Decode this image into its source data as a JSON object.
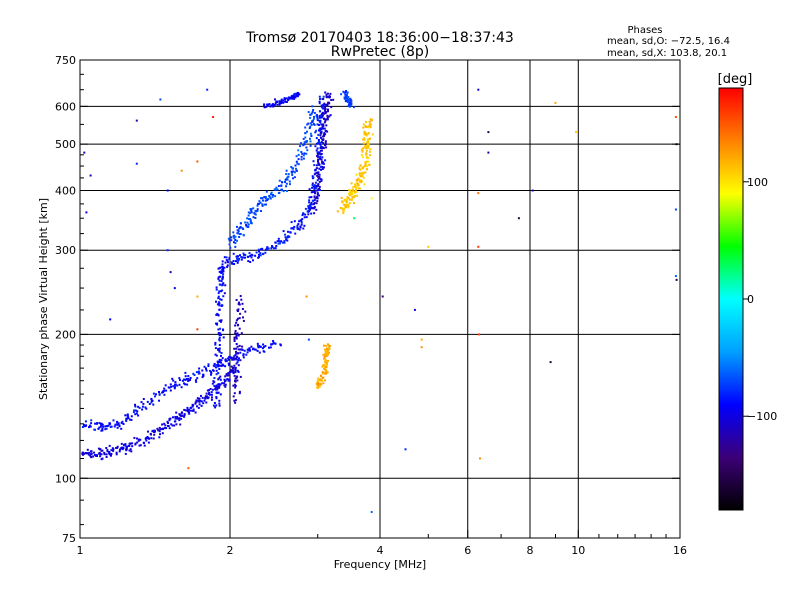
{
  "chart_data": {
    "type": "scatter",
    "title": "Tromsø 20170403 18:36:00−18:37:43",
    "subtitle": "RwPretec (8p)",
    "xlabel": "Frequency [MHz]",
    "ylabel": "Stationary phase Virtual Height [km]",
    "x_scale": "log",
    "y_scale": "log",
    "xlim": [
      1,
      16
    ],
    "ylim": [
      75,
      750
    ],
    "grid": true,
    "x_grid_values": [
      2,
      4,
      6,
      8,
      10
    ],
    "y_grid_values": [
      100,
      200,
      300,
      400,
      500,
      600
    ],
    "x_ticks": [
      {
        "value": 1,
        "label": "1"
      },
      {
        "value": 2,
        "label": "2"
      },
      {
        "value": 4,
        "label": "4"
      },
      {
        "value": 6,
        "label": "6"
      },
      {
        "value": 8,
        "label": "8"
      },
      {
        "value": 10,
        "label": "10"
      },
      {
        "value": 16,
        "label": "16"
      }
    ],
    "y_ticks": [
      {
        "value": 75,
        "label": "75"
      },
      {
        "value": 100,
        "label": "100"
      },
      {
        "value": 200,
        "label": "200"
      },
      {
        "value": 300,
        "label": "300"
      },
      {
        "value": 400,
        "label": "400"
      },
      {
        "value": 500,
        "label": "500"
      },
      {
        "value": 600,
        "label": "600"
      },
      {
        "value": 750,
        "label": "750"
      }
    ],
    "stats": {
      "title": "Phases",
      "line1": "mean, sd,O: −72.5, 16.4",
      "line2": "mean, sd,X: 103.8, 20.1"
    },
    "colorbar": {
      "label": "[deg]",
      "min": -180,
      "max": 180,
      "ticks": [
        {
          "value": 100,
          "label": "100"
        },
        {
          "value": 0,
          "label": "0"
        },
        {
          "value": -100,
          "label": "−100"
        }
      ],
      "colors": [
        "#000000",
        "#3c0078",
        "#0000ff",
        "#00a0ff",
        "#00ffff",
        "#00ff00",
        "#ffff00",
        "#ff8000",
        "#ff0000"
      ]
    },
    "traces": [
      {
        "description": "lower trace",
        "phase": -100,
        "spread": 0.035,
        "points": [
          [
            1.0,
            113
          ],
          [
            1.08,
            112
          ],
          [
            1.16,
            114
          ],
          [
            1.25,
            116
          ],
          [
            1.35,
            120
          ],
          [
            1.45,
            126
          ],
          [
            1.55,
            132
          ],
          [
            1.65,
            138
          ],
          [
            1.75,
            144
          ],
          [
            1.85,
            150
          ],
          [
            1.95,
            160
          ],
          [
            2.05,
            170
          ]
        ]
      },
      {
        "description": "lower trace upper band",
        "phase": -90,
        "spread": 0.04,
        "points": [
          [
            1.0,
            130
          ],
          [
            1.1,
            128
          ],
          [
            1.2,
            130
          ],
          [
            1.3,
            138
          ],
          [
            1.45,
            150
          ],
          [
            1.6,
            160
          ],
          [
            1.75,
            166
          ],
          [
            1.9,
            175
          ],
          [
            2.05,
            180
          ],
          [
            2.25,
            186
          ],
          [
            2.5,
            190
          ]
        ]
      },
      {
        "description": "vertical column near 1.9 MHz",
        "phase": -90,
        "spread": 0.03,
        "points": [
          [
            1.88,
            140
          ],
          [
            1.89,
            170
          ],
          [
            1.9,
            200
          ],
          [
            1.91,
            230
          ],
          [
            1.92,
            260
          ],
          [
            1.93,
            280
          ]
        ]
      },
      {
        "description": "column near 2.05 MHz",
        "phase": -110,
        "spread": 0.03,
        "points": [
          [
            2.05,
            145
          ],
          [
            2.06,
            175
          ],
          [
            2.08,
            205
          ],
          [
            2.1,
            240
          ]
        ]
      },
      {
        "description": "upper trace",
        "phase": -85,
        "spread": 0.035,
        "points": [
          [
            1.95,
            285
          ],
          [
            2.1,
            287
          ],
          [
            2.3,
            295
          ],
          [
            2.5,
            310
          ],
          [
            2.7,
            330
          ],
          [
            2.85,
            355
          ],
          [
            2.95,
            385
          ],
          [
            3.0,
            420
          ],
          [
            3.02,
            470
          ],
          [
            3.04,
            520
          ],
          [
            3.05,
            570
          ],
          [
            3.07,
            620
          ]
        ]
      },
      {
        "description": "upper trace inner band",
        "phase": -70,
        "spread": 0.04,
        "points": [
          [
            2.0,
            310
          ],
          [
            2.1,
            330
          ],
          [
            2.2,
            355
          ],
          [
            2.35,
            380
          ],
          [
            2.5,
            400
          ],
          [
            2.65,
            430
          ],
          [
            2.8,
            480
          ],
          [
            2.9,
            540
          ],
          [
            2.95,
            600
          ]
        ]
      },
      {
        "description": "upper trace dense core",
        "phase": -110,
        "spread": 0.03,
        "points": [
          [
            2.95,
            360
          ],
          [
            3.0,
            420
          ],
          [
            3.05,
            480
          ],
          [
            3.1,
            540
          ],
          [
            3.12,
            600
          ],
          [
            3.15,
            640
          ]
        ]
      },
      {
        "description": "x-mode upper trace",
        "phase": 110,
        "spread": 0.035,
        "points": [
          [
            3.35,
            365
          ],
          [
            3.45,
            380
          ],
          [
            3.55,
            400
          ],
          [
            3.65,
            420
          ],
          [
            3.72,
            450
          ],
          [
            3.75,
            490
          ],
          [
            3.78,
            520
          ],
          [
            3.8,
            560
          ]
        ]
      },
      {
        "description": "x-mode lower patch",
        "phase": 120,
        "spread": 0.025,
        "points": [
          [
            3.0,
            155
          ],
          [
            3.05,
            160
          ],
          [
            3.1,
            170
          ],
          [
            3.12,
            180
          ],
          [
            3.14,
            190
          ]
        ]
      },
      {
        "description": "upper short trace",
        "phase": -90,
        "spread": 0.02,
        "points": [
          [
            2.35,
            600
          ],
          [
            2.5,
            610
          ],
          [
            2.65,
            625
          ],
          [
            2.75,
            640
          ]
        ]
      },
      {
        "description": "isolated cluster near 3.45 MHz",
        "phase": -70,
        "spread": 0.02,
        "points": [
          [
            3.4,
            640
          ],
          [
            3.45,
            620
          ],
          [
            3.5,
            600
          ]
        ]
      }
    ],
    "scatter": [
      {
        "x": 1.02,
        "y": 480,
        "phase": -110
      },
      {
        "x": 1.05,
        "y": 430,
        "phase": -110
      },
      {
        "x": 1.03,
        "y": 360,
        "phase": -100
      },
      {
        "x": 1.15,
        "y": 215,
        "phase": -90
      },
      {
        "x": 1.3,
        "y": 560,
        "phase": -120
      },
      {
        "x": 1.3,
        "y": 455,
        "phase": -80
      },
      {
        "x": 1.45,
        "y": 620,
        "phase": -70
      },
      {
        "x": 1.5,
        "y": 400,
        "phase": -90
      },
      {
        "x": 1.5,
        "y": 300,
        "phase": -80
      },
      {
        "x": 1.52,
        "y": 270,
        "phase": -110
      },
      {
        "x": 1.55,
        "y": 250,
        "phase": -90
      },
      {
        "x": 1.6,
        "y": 440,
        "phase": 130
      },
      {
        "x": 1.65,
        "y": 105,
        "phase": 150
      },
      {
        "x": 1.72,
        "y": 460,
        "phase": 150
      },
      {
        "x": 1.72,
        "y": 205,
        "phase": 160
      },
      {
        "x": 1.72,
        "y": 240,
        "phase": 120
      },
      {
        "x": 1.8,
        "y": 650,
        "phase": -80
      },
      {
        "x": 1.85,
        "y": 570,
        "phase": 170
      },
      {
        "x": 2.85,
        "y": 240,
        "phase": 130
      },
      {
        "x": 2.88,
        "y": 195,
        "phase": -70
      },
      {
        "x": 3.55,
        "y": 350,
        "phase": 30
      },
      {
        "x": 3.85,
        "y": 385,
        "phase": 90
      },
      {
        "x": 3.85,
        "y": 85,
        "phase": -60
      },
      {
        "x": 4.05,
        "y": 240,
        "phase": -140
      },
      {
        "x": 4.5,
        "y": 115,
        "phase": -80
      },
      {
        "x": 4.7,
        "y": 225,
        "phase": -100
      },
      {
        "x": 4.85,
        "y": 195,
        "phase": 120
      },
      {
        "x": 4.85,
        "y": 188,
        "phase": 130
      },
      {
        "x": 5.0,
        "y": 305,
        "phase": 110
      },
      {
        "x": 6.3,
        "y": 650,
        "phase": -100
      },
      {
        "x": 6.3,
        "y": 395,
        "phase": 140
      },
      {
        "x": 6.3,
        "y": 305,
        "phase": 160
      },
      {
        "x": 6.32,
        "y": 200,
        "phase": 160
      },
      {
        "x": 6.35,
        "y": 110,
        "phase": 130
      },
      {
        "x": 6.6,
        "y": 530,
        "phase": -150
      },
      {
        "x": 6.6,
        "y": 480,
        "phase": -120
      },
      {
        "x": 7.6,
        "y": 350,
        "phase": -150
      },
      {
        "x": 8.1,
        "y": 400,
        "phase": -120
      },
      {
        "x": 8.8,
        "y": 175,
        "phase": -150
      },
      {
        "x": 9.0,
        "y": 610,
        "phase": 120
      },
      {
        "x": 9.9,
        "y": 530,
        "phase": 110
      },
      {
        "x": 15.7,
        "y": 570,
        "phase": 150
      },
      {
        "x": 15.75,
        "y": 500,
        "phase": -150
      },
      {
        "x": 15.7,
        "y": 365,
        "phase": -70
      },
      {
        "x": 15.7,
        "y": 265,
        "phase": -60
      },
      {
        "x": 15.75,
        "y": 260,
        "phase": -150
      }
    ]
  }
}
